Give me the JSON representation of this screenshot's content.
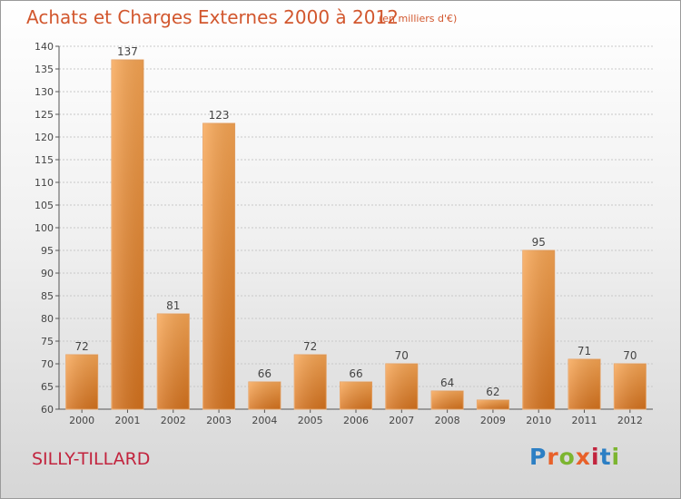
{
  "header": {
    "title": "Achats et Charges Externes 2000 à 2012",
    "subtitle": "(en milliers d'€)"
  },
  "footer": {
    "place": "SILLY-TILLARD",
    "logo_text": "Proxiti",
    "logo_colors": [
      "#2c7fc4",
      "#e8612a",
      "#7cb530",
      "#e8612a",
      "#c2243e",
      "#2c7fc4",
      "#7cb530"
    ]
  },
  "chart_data": {
    "type": "bar",
    "title": "Achats et Charges Externes 2000 à 2012",
    "subtitle": "(en milliers d'€)",
    "categories": [
      "2000",
      "2001",
      "2002",
      "2003",
      "2004",
      "2005",
      "2006",
      "2007",
      "2008",
      "2009",
      "2010",
      "2011",
      "2012"
    ],
    "values": [
      72,
      137,
      81,
      123,
      66,
      72,
      66,
      70,
      64,
      62,
      95,
      71,
      70
    ],
    "data_labels": [
      "72",
      "137",
      "81",
      "123",
      "66",
      "72",
      "66",
      "70",
      "64",
      "62",
      "95",
      "71",
      "70"
    ],
    "ylim": [
      60,
      140
    ],
    "yticks": [
      "60",
      "65",
      "70",
      "75",
      "80",
      "85",
      "90",
      "95",
      "100",
      "105",
      "110",
      "115",
      "120",
      "125",
      "130",
      "135",
      "140"
    ],
    "grid": true,
    "legend": "none",
    "bar_color_top": "#f8a654",
    "bar_color_bottom": "#d6731e"
  }
}
